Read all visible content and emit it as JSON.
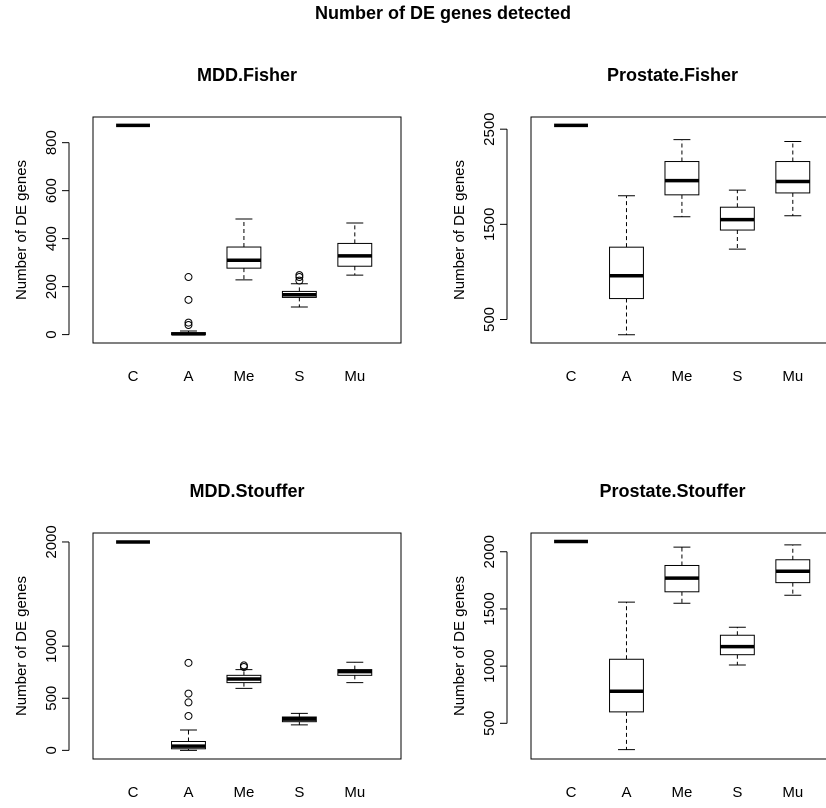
{
  "title": "Number of DE genes detected",
  "chart_data": [
    {
      "type": "box",
      "title": "MDD.Fisher",
      "xlabel": "",
      "ylabel": "Number of DE genes",
      "categories": [
        "C",
        "A",
        "Me",
        "S",
        "Mu"
      ],
      "y_ticks": [
        0,
        200,
        400,
        600,
        800
      ],
      "ylim": [
        -35,
        907
      ],
      "boxes": [
        {
          "category": "C",
          "min": 872,
          "q1": 872,
          "median": 872,
          "q3": 872,
          "max": 872,
          "outliers": []
        },
        {
          "category": "A",
          "min": 0,
          "q1": 0,
          "median": 3,
          "q3": 8,
          "max": 15,
          "outliers": [
            40,
            50,
            145,
            240
          ]
        },
        {
          "category": "Me",
          "min": 228,
          "q1": 277,
          "median": 310,
          "q3": 365,
          "max": 482,
          "outliers": []
        },
        {
          "category": "S",
          "min": 115,
          "q1": 155,
          "median": 166,
          "q3": 180,
          "max": 212,
          "outliers": [
            225,
            240,
            248
          ]
        },
        {
          "category": "Mu",
          "min": 248,
          "q1": 285,
          "median": 328,
          "q3": 380,
          "max": 465,
          "outliers": []
        }
      ]
    },
    {
      "type": "box",
      "title": "Prostate.Fisher",
      "xlabel": "",
      "ylabel": "Number of DE genes",
      "categories": [
        "C",
        "A",
        "Me",
        "S",
        "Mu"
      ],
      "y_ticks": [
        500,
        1500,
        2500
      ],
      "ylim": [
        253,
        2628
      ],
      "boxes": [
        {
          "category": "C",
          "min": 2540,
          "q1": 2540,
          "median": 2540,
          "q3": 2540,
          "max": 2540,
          "outliers": []
        },
        {
          "category": "A",
          "min": 340,
          "q1": 720,
          "median": 960,
          "q3": 1260,
          "max": 1800,
          "outliers": []
        },
        {
          "category": "Me",
          "min": 1580,
          "q1": 1810,
          "median": 1960,
          "q3": 2160,
          "max": 2390,
          "outliers": []
        },
        {
          "category": "S",
          "min": 1240,
          "q1": 1440,
          "median": 1550,
          "q3": 1680,
          "max": 1860,
          "outliers": []
        },
        {
          "category": "Mu",
          "min": 1590,
          "q1": 1830,
          "median": 1950,
          "q3": 2160,
          "max": 2370,
          "outliers": []
        }
      ]
    },
    {
      "type": "box",
      "title": "MDD.Stouffer",
      "xlabel": "",
      "ylabel": "Number of DE genes",
      "categories": [
        "C",
        "A",
        "Me",
        "S",
        "Mu"
      ],
      "y_ticks": [
        0,
        500,
        1000,
        2000
      ],
      "ylim": [
        -83,
        2086
      ],
      "boxes": [
        {
          "category": "C",
          "min": 2000,
          "q1": 2000,
          "median": 2000,
          "q3": 2000,
          "max": 2000,
          "outliers": []
        },
        {
          "category": "A",
          "min": 0,
          "q1": 15,
          "median": 40,
          "q3": 85,
          "max": 195,
          "outliers": [
            330,
            460,
            545,
            840
          ]
        },
        {
          "category": "Me",
          "min": 595,
          "q1": 650,
          "median": 685,
          "q3": 720,
          "max": 775,
          "outliers": [
            800,
            815
          ]
        },
        {
          "category": "S",
          "min": 245,
          "q1": 275,
          "median": 300,
          "q3": 320,
          "max": 355,
          "outliers": []
        },
        {
          "category": "Mu",
          "min": 650,
          "q1": 720,
          "median": 755,
          "q3": 775,
          "max": 845,
          "outliers": []
        }
      ]
    },
    {
      "type": "box",
      "title": "Prostate.Stouffer",
      "xlabel": "",
      "ylabel": "Number of DE genes",
      "categories": [
        "C",
        "A",
        "Me",
        "S",
        "Mu"
      ],
      "y_ticks": [
        500,
        1000,
        1500,
        2000
      ],
      "ylim": [
        188,
        2164
      ],
      "boxes": [
        {
          "category": "C",
          "min": 2090,
          "q1": 2090,
          "median": 2090,
          "q3": 2090,
          "max": 2090,
          "outliers": []
        },
        {
          "category": "A",
          "min": 270,
          "q1": 600,
          "median": 780,
          "q3": 1060,
          "max": 1560,
          "outliers": []
        },
        {
          "category": "Me",
          "min": 1550,
          "q1": 1650,
          "median": 1770,
          "q3": 1880,
          "max": 2040,
          "outliers": []
        },
        {
          "category": "S",
          "min": 1010,
          "q1": 1100,
          "median": 1170,
          "q3": 1270,
          "max": 1340,
          "outliers": []
        },
        {
          "category": "Mu",
          "min": 1620,
          "q1": 1730,
          "median": 1830,
          "q3": 1930,
          "max": 2060,
          "outliers": []
        }
      ]
    }
  ]
}
